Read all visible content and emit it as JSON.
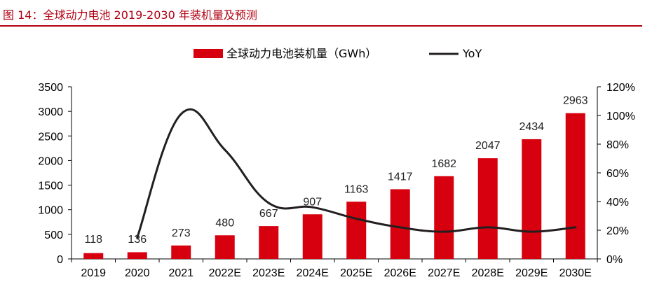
{
  "figure_title": "图 14：全球动力电池 2019-2030 年装机量及预测",
  "colors": {
    "bar": "#d7000f",
    "line": "#231f20",
    "title": "#b00012"
  },
  "chart_data": {
    "type": "bar",
    "categories": [
      "2019",
      "2020",
      "2021",
      "2022E",
      "2023E",
      "2024E",
      "2025E",
      "2026E",
      "2027E",
      "2028E",
      "2029E",
      "2030E"
    ],
    "series": [
      {
        "name": "全球动力电池装机量（GWh）",
        "type": "bar",
        "axis": "left",
        "values": [
          118,
          136,
          273,
          480,
          667,
          907,
          1163,
          1417,
          1682,
          2047,
          2434,
          2963
        ]
      },
      {
        "name": "YoY",
        "type": "line",
        "axis": "right",
        "values": [
          null,
          15,
          101,
          76,
          39,
          36,
          28,
          22,
          19,
          22,
          19,
          22
        ]
      }
    ],
    "y_left": {
      "ylim": [
        0,
        3500
      ],
      "ticks": [
        "0",
        "500",
        "1000",
        "1500",
        "2000",
        "2500",
        "3000",
        "3500"
      ]
    },
    "y_right": {
      "ylim": [
        0,
        120
      ],
      "ticks": [
        "0%",
        "20%",
        "40%",
        "60%",
        "80%",
        "100%",
        "120%"
      ]
    },
    "legend_position": "top-center",
    "grid": false
  }
}
